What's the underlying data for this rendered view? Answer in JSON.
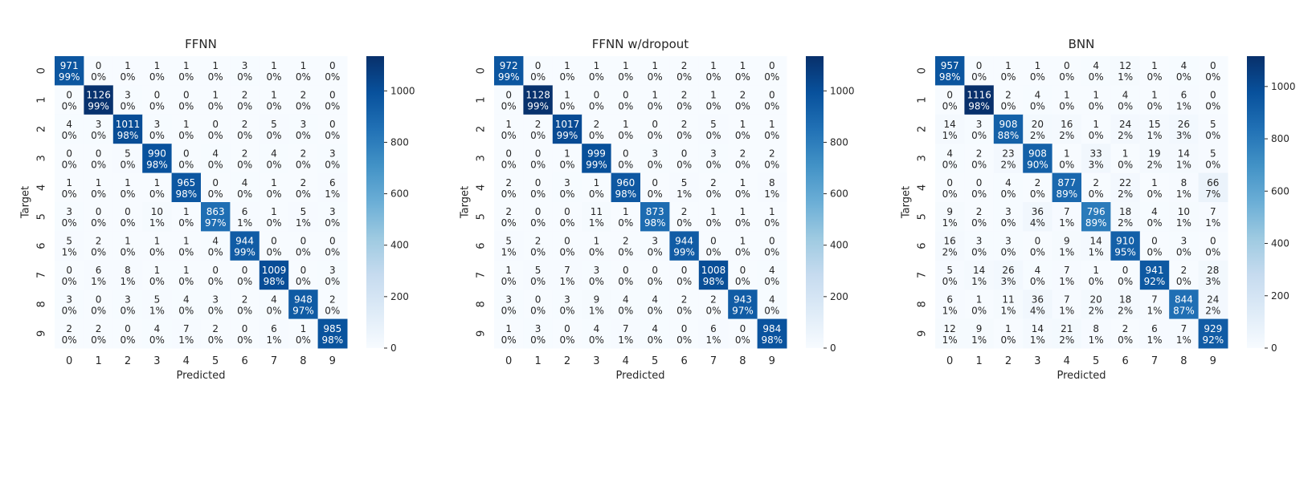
{
  "chart_data": [
    {
      "type": "heatmap",
      "title": "FFNN",
      "xlabel": "Predicted",
      "ylabel": "Target",
      "x_categories": [
        "0",
        "1",
        "2",
        "3",
        "4",
        "5",
        "6",
        "7",
        "8",
        "9"
      ],
      "y_categories": [
        "0",
        "1",
        "2",
        "3",
        "4",
        "5",
        "6",
        "7",
        "8",
        "9"
      ],
      "colormap": "Blues",
      "colorbar": {
        "min": 0,
        "max": 1135,
        "ticks": [
          0,
          200,
          400,
          600,
          800,
          1000
        ]
      },
      "matrix": [
        [
          971,
          0,
          1,
          1,
          1,
          1,
          3,
          1,
          1,
          0
        ],
        [
          0,
          1126,
          3,
          0,
          0,
          1,
          2,
          1,
          2,
          0
        ],
        [
          4,
          3,
          1011,
          3,
          1,
          0,
          2,
          5,
          3,
          0
        ],
        [
          0,
          0,
          5,
          990,
          0,
          4,
          2,
          4,
          2,
          3
        ],
        [
          1,
          1,
          1,
          1,
          965,
          0,
          4,
          1,
          2,
          6
        ],
        [
          3,
          0,
          0,
          10,
          1,
          863,
          6,
          1,
          5,
          3
        ],
        [
          5,
          2,
          1,
          1,
          1,
          4,
          944,
          0,
          0,
          0
        ],
        [
          0,
          6,
          8,
          1,
          1,
          0,
          0,
          1009,
          0,
          3
        ],
        [
          3,
          0,
          3,
          5,
          4,
          3,
          2,
          4,
          948,
          2
        ],
        [
          2,
          2,
          0,
          4,
          7,
          2,
          0,
          6,
          1,
          985
        ]
      ],
      "percent_labels": [
        [
          "99%",
          "0%",
          "0%",
          "0%",
          "0%",
          "0%",
          "0%",
          "0%",
          "0%",
          "0%"
        ],
        [
          "0%",
          "99%",
          "0%",
          "0%",
          "0%",
          "0%",
          "0%",
          "0%",
          "0%",
          "0%"
        ],
        [
          "0%",
          "0%",
          "98%",
          "0%",
          "0%",
          "0%",
          "0%",
          "0%",
          "0%",
          "0%"
        ],
        [
          "0%",
          "0%",
          "0%",
          "98%",
          "0%",
          "0%",
          "0%",
          "0%",
          "0%",
          "0%"
        ],
        [
          "0%",
          "0%",
          "0%",
          "0%",
          "98%",
          "0%",
          "0%",
          "0%",
          "0%",
          "1%"
        ],
        [
          "0%",
          "0%",
          "0%",
          "1%",
          "0%",
          "97%",
          "1%",
          "0%",
          "1%",
          "0%"
        ],
        [
          "1%",
          "0%",
          "0%",
          "0%",
          "0%",
          "0%",
          "99%",
          "0%",
          "0%",
          "0%"
        ],
        [
          "0%",
          "1%",
          "1%",
          "0%",
          "0%",
          "0%",
          "0%",
          "98%",
          "0%",
          "0%"
        ],
        [
          "0%",
          "0%",
          "0%",
          "1%",
          "0%",
          "0%",
          "0%",
          "0%",
          "97%",
          "0%"
        ],
        [
          "0%",
          "0%",
          "0%",
          "0%",
          "1%",
          "0%",
          "0%",
          "1%",
          "0%",
          "98%"
        ]
      ]
    },
    {
      "type": "heatmap",
      "title": "FFNN w/dropout",
      "xlabel": "Predicted",
      "ylabel": "Target",
      "x_categories": [
        "0",
        "1",
        "2",
        "3",
        "4",
        "5",
        "6",
        "7",
        "8",
        "9"
      ],
      "y_categories": [
        "0",
        "1",
        "2",
        "3",
        "4",
        "5",
        "6",
        "7",
        "8",
        "9"
      ],
      "colormap": "Blues",
      "colorbar": {
        "min": 0,
        "max": 1135,
        "ticks": [
          0,
          200,
          400,
          600,
          800,
          1000
        ]
      },
      "matrix": [
        [
          972,
          0,
          1,
          1,
          1,
          1,
          2,
          1,
          1,
          0
        ],
        [
          0,
          1128,
          1,
          0,
          0,
          1,
          2,
          1,
          2,
          0
        ],
        [
          1,
          2,
          1017,
          2,
          1,
          0,
          2,
          5,
          1,
          1
        ],
        [
          0,
          0,
          1,
          999,
          0,
          3,
          0,
          3,
          2,
          2
        ],
        [
          2,
          0,
          3,
          1,
          960,
          0,
          5,
          2,
          1,
          8
        ],
        [
          2,
          0,
          0,
          11,
          1,
          873,
          2,
          1,
          1,
          1
        ],
        [
          5,
          2,
          0,
          1,
          2,
          3,
          944,
          0,
          1,
          0
        ],
        [
          1,
          5,
          7,
          3,
          0,
          0,
          0,
          1008,
          0,
          4
        ],
        [
          3,
          0,
          3,
          9,
          4,
          4,
          2,
          2,
          943,
          4
        ],
        [
          1,
          3,
          0,
          4,
          7,
          4,
          0,
          6,
          0,
          984
        ]
      ],
      "percent_labels": [
        [
          "99%",
          "0%",
          "0%",
          "0%",
          "0%",
          "0%",
          "0%",
          "0%",
          "0%",
          "0%"
        ],
        [
          "0%",
          "99%",
          "0%",
          "0%",
          "0%",
          "0%",
          "0%",
          "0%",
          "0%",
          "0%"
        ],
        [
          "0%",
          "0%",
          "99%",
          "0%",
          "0%",
          "0%",
          "0%",
          "0%",
          "0%",
          "0%"
        ],
        [
          "0%",
          "0%",
          "0%",
          "99%",
          "0%",
          "0%",
          "0%",
          "0%",
          "0%",
          "0%"
        ],
        [
          "0%",
          "0%",
          "0%",
          "0%",
          "98%",
          "0%",
          "1%",
          "0%",
          "0%",
          "1%"
        ],
        [
          "0%",
          "0%",
          "0%",
          "1%",
          "0%",
          "98%",
          "0%",
          "0%",
          "0%",
          "0%"
        ],
        [
          "1%",
          "0%",
          "0%",
          "0%",
          "0%",
          "0%",
          "99%",
          "0%",
          "0%",
          "0%"
        ],
        [
          "0%",
          "0%",
          "1%",
          "0%",
          "0%",
          "0%",
          "0%",
          "98%",
          "0%",
          "0%"
        ],
        [
          "0%",
          "0%",
          "0%",
          "1%",
          "0%",
          "0%",
          "0%",
          "0%",
          "97%",
          "0%"
        ],
        [
          "0%",
          "0%",
          "0%",
          "0%",
          "1%",
          "0%",
          "0%",
          "1%",
          "0%",
          "98%"
        ]
      ]
    },
    {
      "type": "heatmap",
      "title": "BNN",
      "xlabel": "Predicted",
      "ylabel": "Target",
      "x_categories": [
        "0",
        "1",
        "2",
        "3",
        "4",
        "5",
        "6",
        "7",
        "8",
        "9"
      ],
      "y_categories": [
        "0",
        "1",
        "2",
        "3",
        "4",
        "5",
        "6",
        "7",
        "8",
        "9"
      ],
      "colormap": "Blues",
      "colorbar": {
        "min": 0,
        "max": 1116,
        "ticks": [
          0,
          200,
          400,
          600,
          800,
          1000
        ]
      },
      "matrix": [
        [
          957,
          0,
          1,
          1,
          0,
          4,
          12,
          1,
          4,
          0
        ],
        [
          0,
          1116,
          2,
          4,
          1,
          1,
          4,
          1,
          6,
          0
        ],
        [
          14,
          3,
          908,
          20,
          16,
          1,
          24,
          15,
          26,
          5
        ],
        [
          4,
          2,
          23,
          908,
          1,
          33,
          1,
          19,
          14,
          5
        ],
        [
          0,
          0,
          4,
          2,
          877,
          2,
          22,
          1,
          8,
          66
        ],
        [
          9,
          2,
          3,
          36,
          7,
          796,
          18,
          4,
          10,
          7
        ],
        [
          16,
          3,
          3,
          0,
          9,
          14,
          910,
          0,
          3,
          0
        ],
        [
          5,
          14,
          26,
          4,
          7,
          1,
          0,
          941,
          2,
          28
        ],
        [
          6,
          1,
          11,
          36,
          7,
          20,
          18,
          7,
          844,
          24
        ],
        [
          12,
          9,
          1,
          14,
          21,
          8,
          2,
          6,
          7,
          929
        ]
      ],
      "percent_labels": [
        [
          "98%",
          "0%",
          "0%",
          "0%",
          "0%",
          "0%",
          "1%",
          "0%",
          "0%",
          "0%"
        ],
        [
          "0%",
          "98%",
          "0%",
          "0%",
          "0%",
          "0%",
          "0%",
          "0%",
          "1%",
          "0%"
        ],
        [
          "1%",
          "0%",
          "88%",
          "2%",
          "2%",
          "0%",
          "2%",
          "1%",
          "3%",
          "0%"
        ],
        [
          "0%",
          "0%",
          "2%",
          "90%",
          "0%",
          "3%",
          "0%",
          "2%",
          "1%",
          "0%"
        ],
        [
          "0%",
          "0%",
          "0%",
          "0%",
          "89%",
          "0%",
          "2%",
          "0%",
          "1%",
          "7%"
        ],
        [
          "1%",
          "0%",
          "0%",
          "4%",
          "1%",
          "89%",
          "2%",
          "0%",
          "1%",
          "1%"
        ],
        [
          "2%",
          "0%",
          "0%",
          "0%",
          "1%",
          "1%",
          "95%",
          "0%",
          "0%",
          "0%"
        ],
        [
          "0%",
          "1%",
          "3%",
          "0%",
          "1%",
          "0%",
          "0%",
          "92%",
          "0%",
          "3%"
        ],
        [
          "1%",
          "0%",
          "1%",
          "4%",
          "1%",
          "2%",
          "2%",
          "1%",
          "87%",
          "2%"
        ],
        [
          "1%",
          "1%",
          "0%",
          "1%",
          "2%",
          "1%",
          "0%",
          "1%",
          "1%",
          "92%"
        ]
      ]
    }
  ]
}
